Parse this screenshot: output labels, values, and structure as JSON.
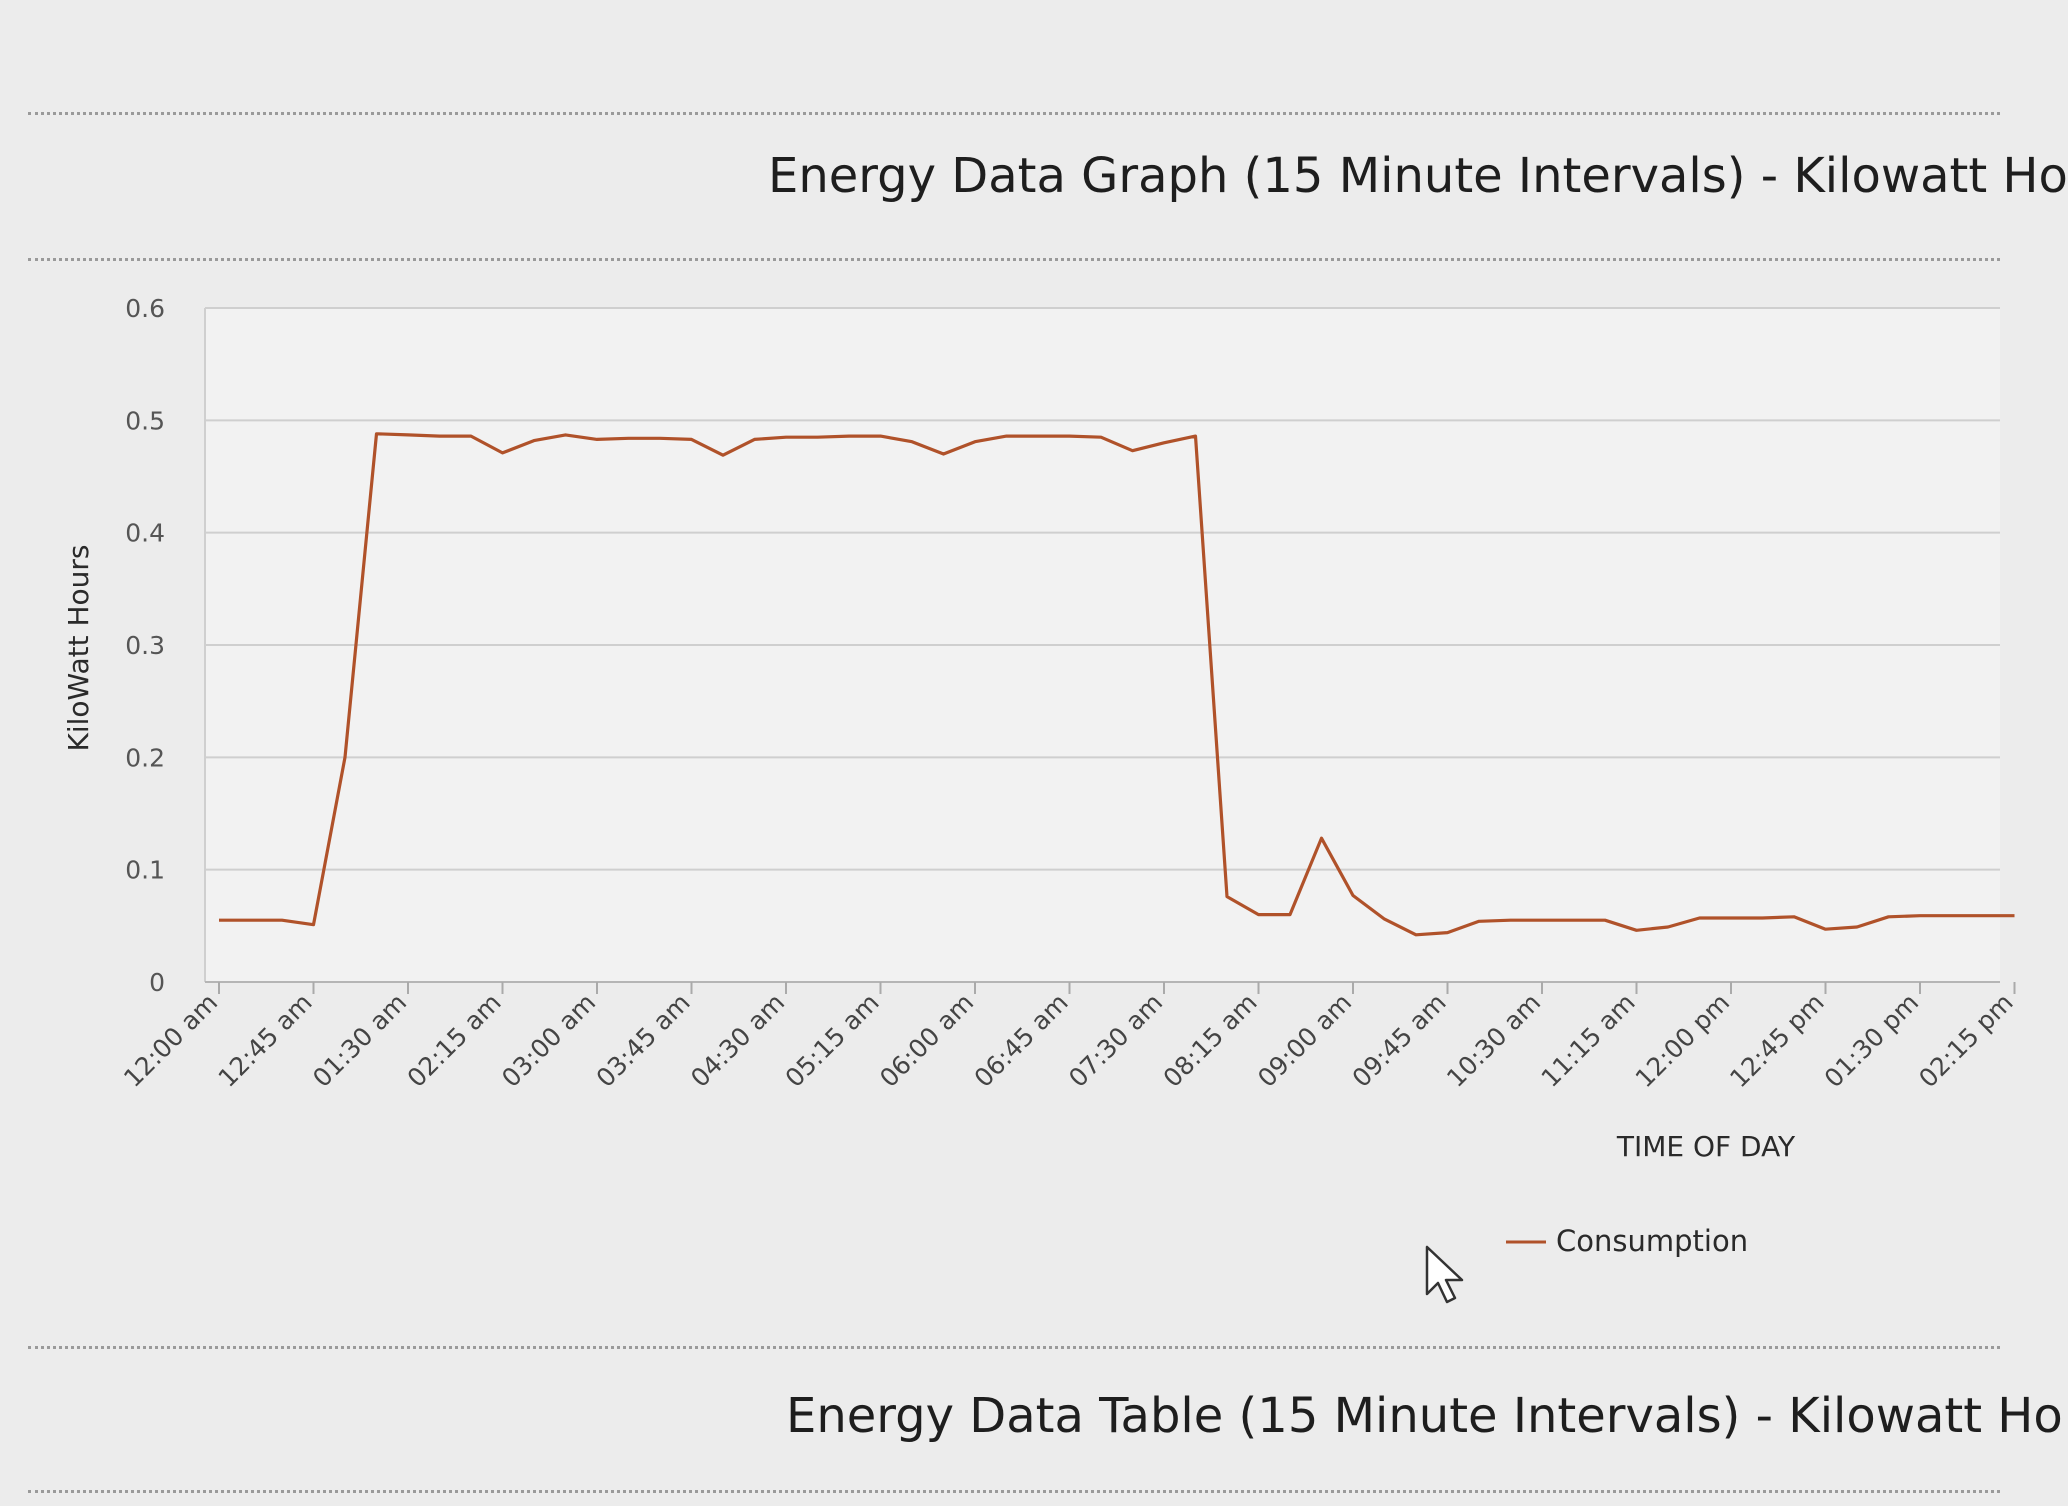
{
  "graph_section": {
    "title": "Energy Data Graph (15 Minute Intervals) - Kilowatt Ho"
  },
  "table_section": {
    "title": "Energy Data Table (15 Minute Intervals) - Kilowatt Ho"
  },
  "cursor": {
    "icon": "pointer-cursor-icon"
  },
  "chart_data": {
    "type": "line",
    "title": "",
    "xlabel": "TIME OF DAY",
    "ylabel": "KiloWatt Hours",
    "ylim": [
      0,
      0.6
    ],
    "y_ticks": [
      "0",
      "0.1",
      "0.2",
      "0.3",
      "0.4",
      "0.5",
      "0.6"
    ],
    "grid": "horizontal",
    "legend_position": "bottom",
    "x_tick_labels": [
      "12:00 am",
      "12:45 am",
      "01:30 am",
      "02:15 am",
      "03:00 am",
      "03:45 am",
      "04:30 am",
      "05:15 am",
      "06:00 am",
      "06:45 am",
      "07:30 am",
      "08:15 am",
      "09:00 am",
      "09:45 am",
      "10:30 am",
      "11:15 am",
      "12:00 pm",
      "12:45 pm",
      "01:30 pm",
      "02:15 pm"
    ],
    "x": [
      "12:00 am",
      "12:15 am",
      "12:30 am",
      "12:45 am",
      "01:00 am",
      "01:15 am",
      "01:30 am",
      "01:45 am",
      "02:00 am",
      "02:15 am",
      "02:30 am",
      "02:45 am",
      "03:00 am",
      "03:15 am",
      "03:30 am",
      "03:45 am",
      "04:00 am",
      "04:15 am",
      "04:30 am",
      "04:45 am",
      "05:00 am",
      "05:15 am",
      "05:30 am",
      "05:45 am",
      "06:00 am",
      "06:15 am",
      "06:30 am",
      "06:45 am",
      "07:00 am",
      "07:15 am",
      "07:30 am",
      "07:45 am",
      "08:00 am",
      "08:15 am",
      "08:30 am",
      "08:45 am",
      "09:00 am",
      "09:15 am",
      "09:30 am",
      "09:45 am",
      "10:00 am",
      "10:15 am",
      "10:30 am",
      "10:45 am",
      "11:00 am",
      "11:15 am",
      "11:30 am",
      "11:45 am",
      "12:00 pm",
      "12:15 pm",
      "12:30 pm",
      "12:45 pm",
      "01:00 pm",
      "01:15 pm",
      "01:30 pm",
      "01:45 pm",
      "02:00 pm",
      "02:15 pm"
    ],
    "series": [
      {
        "name": "Consumption",
        "color": "#b0522a",
        "values": [
          0.055,
          0.055,
          0.055,
          0.051,
          0.2,
          0.488,
          0.487,
          0.486,
          0.486,
          0.471,
          0.482,
          0.487,
          0.483,
          0.484,
          0.484,
          0.483,
          0.469,
          0.483,
          0.485,
          0.485,
          0.486,
          0.486,
          0.481,
          0.47,
          0.481,
          0.486,
          0.486,
          0.486,
          0.485,
          0.473,
          0.48,
          0.486,
          0.076,
          0.06,
          0.06,
          0.128,
          0.077,
          0.056,
          0.042,
          0.044,
          0.054,
          0.055,
          0.055,
          0.055,
          0.055,
          0.046,
          0.049,
          0.057,
          0.057,
          0.057,
          0.058,
          0.047,
          0.049,
          0.058,
          0.059,
          0.059,
          0.059,
          0.059
        ]
      }
    ]
  }
}
